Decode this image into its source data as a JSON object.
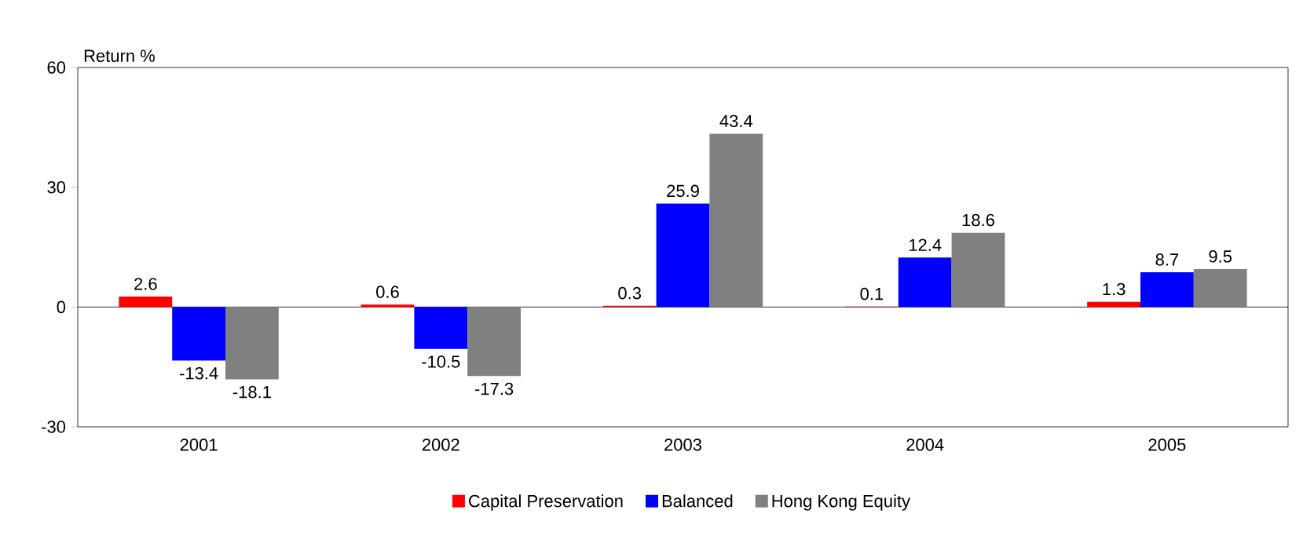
{
  "chart_data": {
    "type": "bar",
    "ylabel": "Return %",
    "categories": [
      "2001",
      "2002",
      "2003",
      "2004",
      "2005"
    ],
    "series": [
      {
        "name": "Capital Preservation",
        "color": "#ff0000",
        "values": [
          2.6,
          0.6,
          0.3,
          0.1,
          1.3
        ]
      },
      {
        "name": "Balanced",
        "color": "#0000ff",
        "values": [
          -13.4,
          -10.5,
          25.9,
          12.4,
          8.7
        ]
      },
      {
        "name": "Hong Kong Equity",
        "color": "#808080",
        "values": [
          -18.1,
          -17.3,
          43.4,
          18.6,
          9.5
        ]
      }
    ],
    "ylim": [
      -30,
      60
    ],
    "yticks": [
      -30,
      0,
      30,
      60
    ],
    "ref_lines": [
      {
        "axis": "y",
        "value": 0,
        "color": "#000000"
      }
    ],
    "grid": false,
    "legend": "bottom",
    "data_labels": true
  }
}
